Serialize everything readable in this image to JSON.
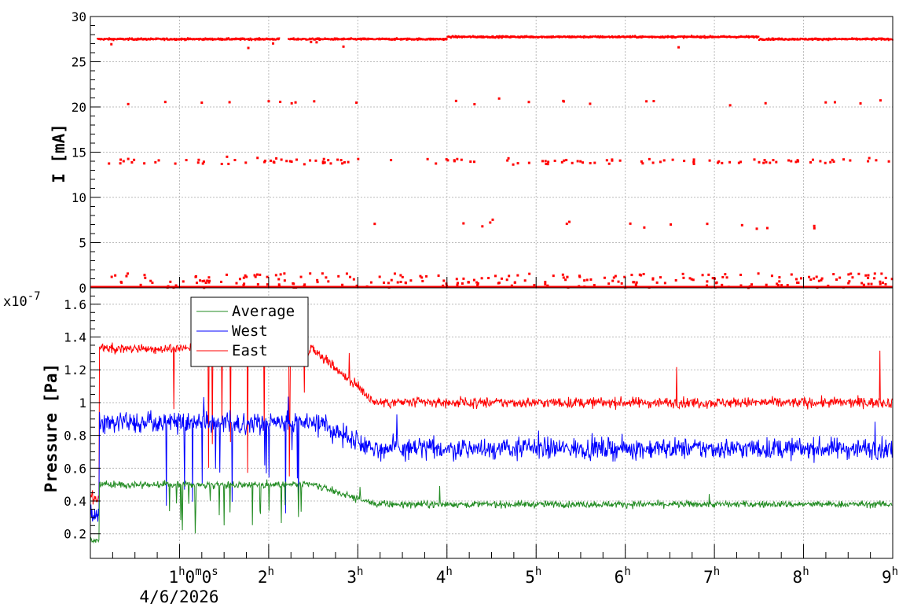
{
  "chart_data": [
    {
      "type": "scatter",
      "title": "",
      "ylabel": "I [mA]",
      "ylim": [
        0,
        30
      ],
      "xlim_hours": [
        0,
        9
      ],
      "yticks": [
        "0",
        "5",
        "10",
        "15",
        "20",
        "25",
        "30"
      ],
      "grid": true,
      "series": [
        {
          "color": "#ff0000",
          "baseline_mA": 27.5,
          "outlier_levels_mA": [
            0,
            0.5,
            1,
            7,
            14,
            20.5
          ]
        }
      ]
    },
    {
      "type": "line",
      "title": "",
      "ylabel": "Pressure [Pa]",
      "y_multiplier": "x10",
      "y_multiplier_exp": "-7",
      "ylim": [
        0.05,
        1.7
      ],
      "yticks": [
        "0.2",
        "0.4",
        "0.6",
        "0.8",
        "1",
        "1.2",
        "1.4",
        "1.6"
      ],
      "xlim_hours": [
        0,
        9
      ],
      "x_tick_labels": [
        "1",
        "2",
        "3",
        "4",
        "5",
        "6",
        "7",
        "8",
        "9"
      ],
      "x_tick_unit": "h",
      "first_tick_suffix": "0m0s",
      "date_label": "4/6/2026",
      "grid": true,
      "legend_position": "top-left",
      "series": [
        {
          "name": "Average",
          "color": "#228b22",
          "typical": 0.38,
          "early": 0.5
        },
        {
          "name": "West",
          "color": "#0000ff",
          "typical": 0.72,
          "early": 0.88
        },
        {
          "name": "East",
          "color": "#ff0000",
          "typical": 1.0,
          "early": 1.33
        }
      ]
    }
  ]
}
